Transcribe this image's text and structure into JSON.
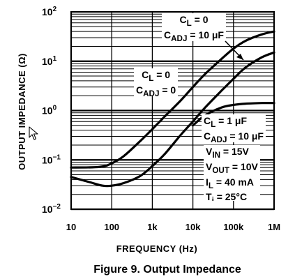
{
  "chart_data": {
    "type": "line",
    "caption": "Figure 9. Output Impedance",
    "xlabel": "FREQUENCY (Hz)",
    "ylabel": "OUTPUT IMPEDANCE (Ω)",
    "x_scale": "log",
    "y_scale": "log",
    "xlim": [
      10,
      1000000
    ],
    "ylim": [
      0.01,
      100
    ],
    "grid": true,
    "x_ticks": [
      {
        "value": 10,
        "label": "10"
      },
      {
        "value": 100,
        "label": "100"
      },
      {
        "value": 1000,
        "label": "1k"
      },
      {
        "value": 10000,
        "label": "10k"
      },
      {
        "value": 100000,
        "label": "100k"
      },
      {
        "value": 1000000,
        "label": "1M"
      }
    ],
    "y_ticks": [
      {
        "value": 100,
        "base": "10",
        "exp": "2"
      },
      {
        "value": 10,
        "base": "10",
        "exp": "1"
      },
      {
        "value": 1,
        "base": "10",
        "exp": "0"
      },
      {
        "value": 0.1,
        "base": "10",
        "exp": "−1"
      },
      {
        "value": 0.01,
        "base": "10",
        "exp": "−2"
      }
    ],
    "series": [
      {
        "points": [
          [
            10,
            0.045
          ],
          [
            30,
            0.035
          ],
          [
            60,
            0.03
          ],
          [
            100,
            0.03
          ],
          [
            200,
            0.034
          ],
          [
            500,
            0.047
          ],
          [
            1000,
            0.075
          ],
          [
            2000,
            0.13
          ],
          [
            5000,
            0.32
          ],
          [
            10000,
            0.6
          ],
          [
            20000,
            1.15
          ],
          [
            50000,
            2.5
          ],
          [
            100000,
            4.4
          ],
          [
            200000,
            7.5
          ],
          [
            500000,
            12
          ],
          [
            1000000,
            15
          ]
        ]
      },
      {
        "points": [
          [
            10,
            0.07
          ],
          [
            50,
            0.072
          ],
          [
            100,
            0.085
          ],
          [
            200,
            0.12
          ],
          [
            500,
            0.24
          ],
          [
            1000,
            0.42
          ],
          [
            2000,
            0.75
          ],
          [
            5000,
            1.6
          ],
          [
            10000,
            3.0
          ],
          [
            20000,
            5.5
          ],
          [
            50000,
            11
          ],
          [
            100000,
            18
          ],
          [
            200000,
            26
          ],
          [
            500000,
            35
          ],
          [
            1000000,
            40
          ]
        ]
      },
      {
        "points": [
          [
            10000,
            0.5
          ],
          [
            20000,
            0.8
          ],
          [
            50000,
            1.15
          ],
          [
            100000,
            1.3
          ],
          [
            200000,
            1.38
          ],
          [
            500000,
            1.42
          ],
          [
            1000000,
            1.42
          ]
        ]
      }
    ],
    "annotations": {
      "top": {
        "cl": "C<sub>L</sub> = 0",
        "cadj": "C<sub>ADJ</sub> = 10 μF"
      },
      "middle": {
        "cl": "C<sub>L</sub> = 0",
        "cadj": "C<sub>ADJ</sub> = 0"
      },
      "low": {
        "cl": "C<sub>L</sub> = 1 μF",
        "cadj": "C<sub>ADJ</sub> = 10 μF"
      },
      "conditions": [
        "V<sub>IN</sub> = 15V",
        "V<sub>OUT</sub> = 10V",
        "I<sub>L</sub> = 40 mA",
        "T<sub>j</sub> = 25°C"
      ]
    }
  }
}
